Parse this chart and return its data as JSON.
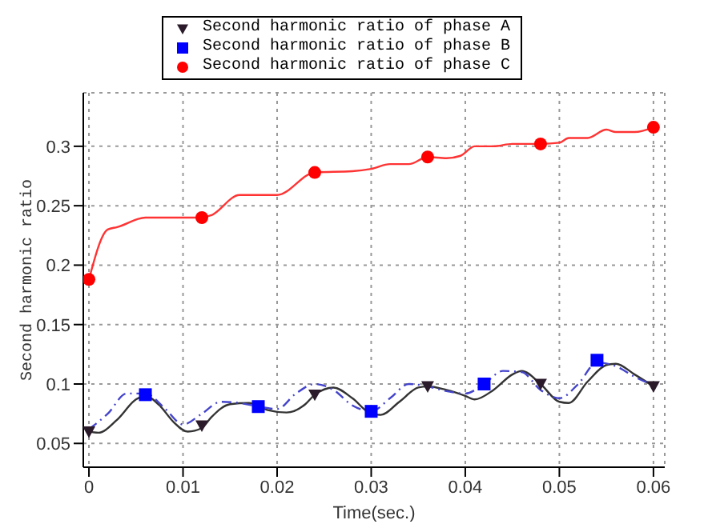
{
  "chart_data": {
    "type": "line",
    "xlabel": "Time(sec.)",
    "ylabel": "Second harmonic ratio",
    "xlim": [
      -0.0006,
      0.0612
    ],
    "ylim": [
      0.03,
      0.345
    ],
    "xticks": [
      0,
      0.01,
      0.02,
      0.03,
      0.04,
      0.05,
      0.06
    ],
    "yticks": [
      0.05,
      0.1,
      0.15,
      0.2,
      0.25,
      0.3
    ],
    "grid": true,
    "legend": "top",
    "series": [
      {
        "color": "#333333",
        "marker": "none",
        "line_style": "solid",
        "x": [
          0,
          0.001,
          0.003,
          0.005,
          0.006,
          0.0075,
          0.009,
          0.0105,
          0.012,
          0.013,
          0.015,
          0.017,
          0.019,
          0.021,
          0.023,
          0.024,
          0.026,
          0.028,
          0.03,
          0.031,
          0.033,
          0.035,
          0.036,
          0.038,
          0.04,
          0.041,
          0.043,
          0.045,
          0.046,
          0.048,
          0.05,
          0.051,
          0.053,
          0.055,
          0.056,
          0.058,
          0.06
        ],
        "values": [
          0.06,
          0.059,
          0.07,
          0.087,
          0.09,
          0.082,
          0.068,
          0.06,
          0.063,
          0.072,
          0.083,
          0.084,
          0.078,
          0.076,
          0.083,
          0.091,
          0.097,
          0.088,
          0.075,
          0.074,
          0.085,
          0.097,
          0.098,
          0.095,
          0.09,
          0.087,
          0.095,
          0.108,
          0.111,
          0.1,
          0.085,
          0.084,
          0.102,
          0.116,
          0.117,
          0.108,
          0.098
        ]
      },
      {
        "color": "#4444cc",
        "marker": "none",
        "line_style": "dashed",
        "x": [
          0,
          0.002,
          0.004,
          0.006,
          0.008,
          0.01,
          0.012,
          0.014,
          0.016,
          0.018,
          0.02,
          0.022,
          0.024,
          0.026,
          0.028,
          0.03,
          0.032,
          0.034,
          0.036,
          0.038,
          0.04,
          0.042,
          0.044,
          0.046,
          0.048,
          0.05,
          0.052,
          0.054,
          0.056,
          0.058,
          0.06
        ],
        "values": [
          0.062,
          0.075,
          0.092,
          0.092,
          0.08,
          0.066,
          0.075,
          0.085,
          0.084,
          0.081,
          0.079,
          0.092,
          0.1,
          0.095,
          0.082,
          0.077,
          0.088,
          0.1,
          0.098,
          0.094,
          0.092,
          0.1,
          0.111,
          0.11,
          0.095,
          0.088,
          0.1,
          0.118,
          0.115,
          0.106,
          0.099
        ]
      },
      {
        "color": "#ff3333",
        "marker": "none",
        "line_style": "solid",
        "x": [
          0,
          0.002,
          0.003,
          0.006,
          0.012,
          0.013,
          0.016,
          0.02,
          0.024,
          0.028,
          0.03,
          0.032,
          0.034,
          0.036,
          0.038,
          0.0395,
          0.041,
          0.043,
          0.045,
          0.048,
          0.05,
          0.051,
          0.053,
          0.055,
          0.056,
          0.058,
          0.06
        ],
        "values": [
          0.188,
          0.23,
          0.232,
          0.24,
          0.24,
          0.242,
          0.259,
          0.259,
          0.278,
          0.279,
          0.281,
          0.285,
          0.285,
          0.291,
          0.29,
          0.292,
          0.3,
          0.3,
          0.302,
          0.302,
          0.303,
          0.307,
          0.307,
          0.314,
          0.312,
          0.312,
          0.316
        ]
      },
      {
        "type": "scatter",
        "name": "Second harmonic ratio of phase A",
        "color": "#2a1a2a",
        "marker": "triangle",
        "x": [
          0,
          0.012,
          0.024,
          0.036,
          0.048,
          0.06
        ],
        "values": [
          0.06,
          0.065,
          0.091,
          0.098,
          0.1,
          0.098
        ]
      },
      {
        "type": "scatter",
        "name": "Second harmonic ratio of phase B",
        "color": "#0000ff",
        "marker": "square",
        "x": [
          0.006,
          0.018,
          0.03,
          0.042,
          0.054
        ],
        "values": [
          0.091,
          0.081,
          0.077,
          0.1,
          0.12
        ]
      },
      {
        "type": "scatter",
        "name": "Second harmonic ratio of phase C",
        "color": "#ff0000",
        "marker": "circle",
        "x": [
          0,
          0.012,
          0.024,
          0.036,
          0.048,
          0.06
        ],
        "values": [
          0.188,
          0.24,
          0.278,
          0.291,
          0.302,
          0.316
        ]
      }
    ]
  }
}
